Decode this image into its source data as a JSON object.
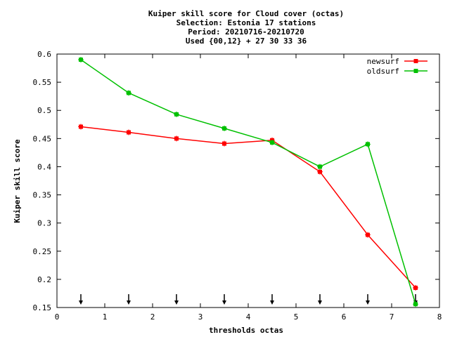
{
  "chart_data": {
    "type": "line",
    "title_lines": [
      "Kuiper skill score  for Cloud cover (octas)",
      "Selection: Estonia     17 stations",
      "Period: 20210716-20210720",
      "Used {00,12} + 27 30 33 36"
    ],
    "xlabel": "thresholds octas",
    "ylabel": "Kuiper skill score",
    "xlim": [
      0,
      8
    ],
    "ylim": [
      0.15,
      0.6
    ],
    "xticks": [
      "0",
      "1",
      "2",
      "3",
      "4",
      "5",
      "6",
      "7",
      "8"
    ],
    "yticks": [
      "0.15",
      "0.2",
      "0.25",
      "0.3",
      "0.35",
      "0.4",
      "0.45",
      "0.5",
      "0.55",
      "0.6"
    ],
    "x": [
      0.5,
      1.5,
      2.5,
      3.5,
      4.5,
      5.5,
      6.5,
      7.5
    ],
    "series": [
      {
        "name": "newsurf",
        "color": "#ff0000",
        "values": [
          0.471,
          0.461,
          0.45,
          0.441,
          0.447,
          0.391,
          0.279,
          0.185
        ]
      },
      {
        "name": "oldsurf",
        "color": "#00c000",
        "values": [
          0.59,
          0.531,
          0.493,
          0.468,
          0.443,
          0.4,
          0.44,
          0.156
        ]
      }
    ],
    "threshold_arrows": [
      0.5,
      1.5,
      2.5,
      3.5,
      4.5,
      5.5,
      6.5,
      7.5
    ],
    "legend_position": "top-right",
    "grid": false
  }
}
